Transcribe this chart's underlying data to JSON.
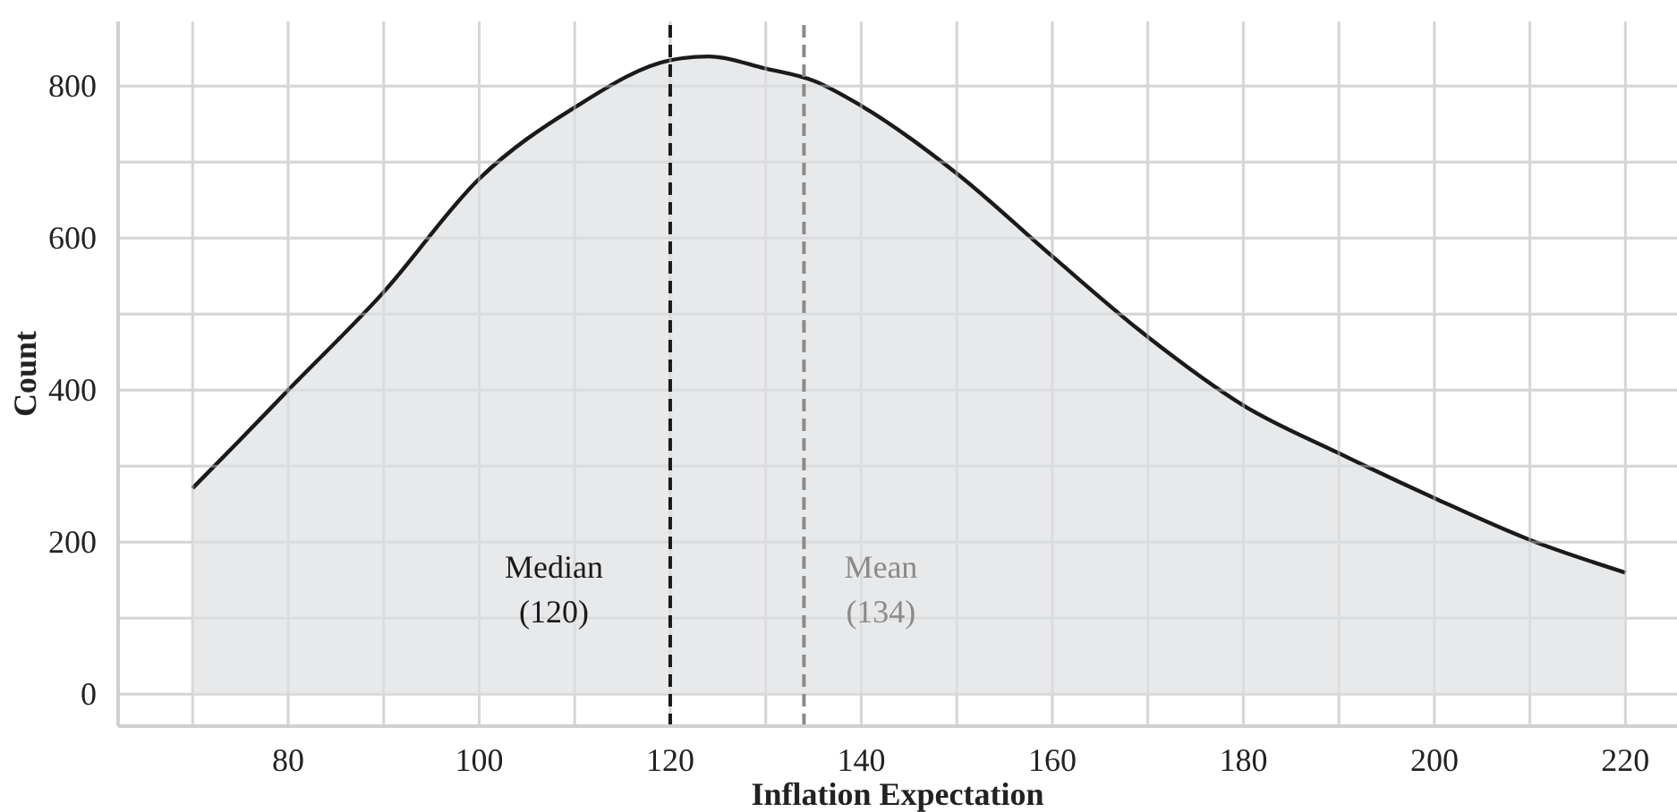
{
  "chart_data": {
    "type": "area",
    "xlabel": "Inflation Expectation",
    "ylabel": "Count",
    "x": [
      70,
      75,
      80,
      90,
      100,
      110,
      120,
      124,
      130,
      135,
      140,
      150,
      160,
      170,
      180,
      190,
      200,
      210,
      220
    ],
    "series": [
      {
        "color": "#1a1a1a",
        "values": [
          271,
          335,
          400,
          529,
          678,
          772,
          834,
          839,
          823,
          807,
          774,
          685,
          576,
          470,
          380,
          317,
          258,
          203,
          160
        ]
      }
    ],
    "xlim": [
      62.2,
      225.4
    ],
    "ylim": [
      -42,
      885
    ],
    "xticks": [
      {
        "value": 70,
        "label": null
      },
      80,
      {
        "value": 90,
        "label": null
      },
      100,
      {
        "value": 110,
        "label": null
      },
      120,
      {
        "value": 130,
        "label": null
      },
      140,
      {
        "value": 150,
        "label": null
      },
      160,
      {
        "value": 170,
        "label": null
      },
      180,
      {
        "value": 190,
        "label": null
      },
      200,
      {
        "value": 210,
        "label": null
      },
      220
    ],
    "yticks": [
      0,
      {
        "value": 100,
        "label": null
      },
      200,
      {
        "value": 300,
        "label": null
      },
      400,
      {
        "value": 500,
        "label": null
      },
      600,
      {
        "value": 700,
        "label": null
      },
      800
    ],
    "grid": true,
    "ref_lines": [
      {
        "axis": "x",
        "value": 120,
        "label": "Median\n(120)",
        "color": "#1a1a1a",
        "line_style": "dashed"
      },
      {
        "axis": "x",
        "value": 134,
        "label": "Mean\n(134)",
        "color": "#8a8a8a",
        "line_style": "dashed"
      }
    ]
  }
}
